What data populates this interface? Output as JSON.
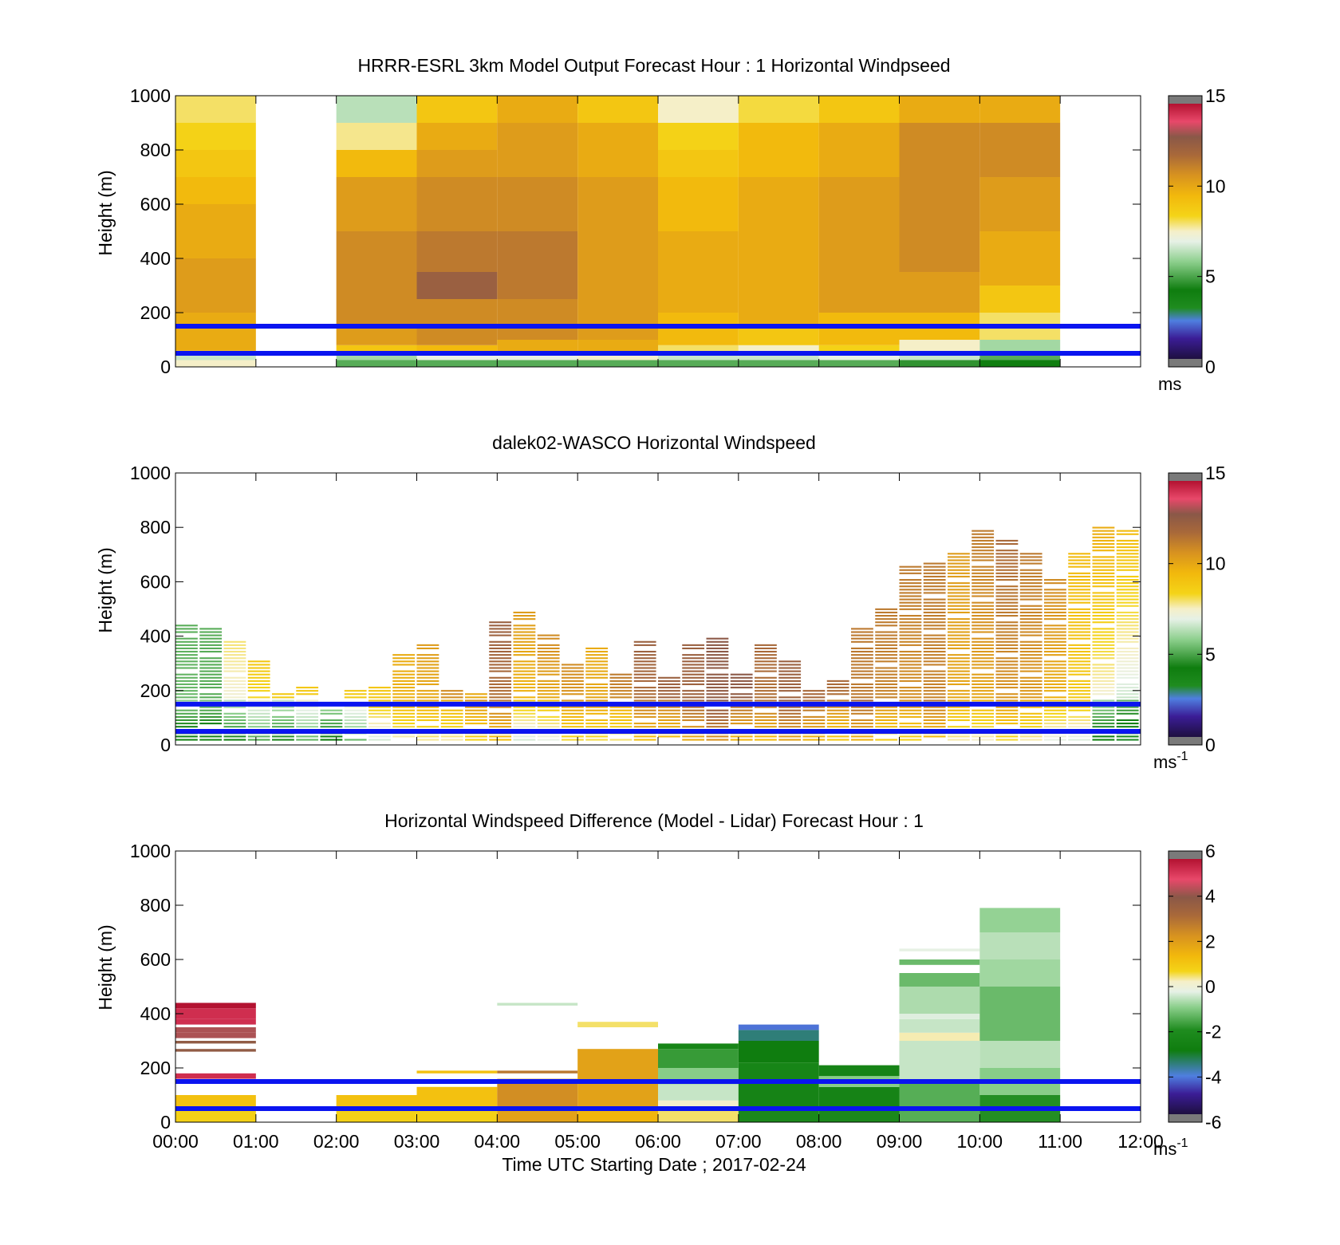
{
  "figure": {
    "xlabel": "Time UTC  Starting Date ; 2017-02-24",
    "xticks": [
      "00:00",
      "01:00",
      "02:00",
      "03:00",
      "04:00",
      "05:00",
      "06:00",
      "07:00",
      "08:00",
      "09:00",
      "10:00",
      "11:00",
      "12:00"
    ]
  },
  "chart_data": [
    {
      "id": "model",
      "type": "heatmap",
      "title": "HRRR-ESRL 3km Model Output   Forecast Hour : 1 Horizontal Windpseed",
      "ylabel": "Height (m)",
      "yticks": [
        "0",
        "200",
        "400",
        "600",
        "800",
        "1000"
      ],
      "ylim": [
        0,
        1000
      ],
      "xlim": [
        0,
        12
      ],
      "colorbar": {
        "min": 0,
        "max": 15,
        "ticks": [
          "0",
          "5",
          "10",
          "15"
        ],
        "unit": "ms"
      },
      "reference_lines_m": [
        50,
        150
      ],
      "columns": [
        {
          "t0": 0,
          "t1": 1,
          "cells": [
            [
              0,
              25,
              7.5
            ],
            [
              25,
              50,
              6.5
            ],
            [
              50,
              60,
              9
            ],
            [
              60,
              200,
              10
            ],
            [
              200,
              400,
              10.5
            ],
            [
              400,
              600,
              10
            ],
            [
              600,
              700,
              9.5
            ],
            [
              700,
              800,
              9
            ],
            [
              800,
              900,
              8.5
            ],
            [
              900,
              1000,
              8
            ]
          ]
        },
        {
          "t0": 2,
          "t1": 3,
          "cells": [
            [
              0,
              25,
              5
            ],
            [
              25,
              50,
              6
            ],
            [
              50,
              80,
              9
            ],
            [
              80,
              150,
              10.5
            ],
            [
              150,
              500,
              11
            ],
            [
              500,
              700,
              10.5
            ],
            [
              700,
              800,
              9.5
            ],
            [
              800,
              900,
              7.8
            ],
            [
              900,
              1000,
              6.3
            ]
          ]
        },
        {
          "t0": 3,
          "t1": 4,
          "cells": [
            [
              0,
              25,
              5
            ],
            [
              25,
              50,
              7
            ],
            [
              50,
              80,
              9.5
            ],
            [
              80,
              250,
              11
            ],
            [
              250,
              350,
              12.5
            ],
            [
              350,
              500,
              11.5
            ],
            [
              500,
              700,
              11
            ],
            [
              700,
              800,
              10.5
            ],
            [
              800,
              900,
              10
            ],
            [
              900,
              1000,
              9
            ]
          ]
        },
        {
          "t0": 4,
          "t1": 5,
          "cells": [
            [
              0,
              25,
              5
            ],
            [
              25,
              50,
              7
            ],
            [
              50,
              100,
              10
            ],
            [
              100,
              250,
              11
            ],
            [
              250,
              500,
              11.5
            ],
            [
              500,
              700,
              11
            ],
            [
              700,
              900,
              10.5
            ],
            [
              900,
              1000,
              10
            ]
          ]
        },
        {
          "t0": 5,
          "t1": 6,
          "cells": [
            [
              0,
              25,
              5
            ],
            [
              25,
              50,
              7.5
            ],
            [
              50,
              100,
              10
            ],
            [
              100,
              500,
              10.5
            ],
            [
              500,
              700,
              10.5
            ],
            [
              700,
              900,
              10
            ],
            [
              900,
              1000,
              9
            ]
          ]
        },
        {
          "t0": 6,
          "t1": 7,
          "cells": [
            [
              0,
              25,
              5
            ],
            [
              25,
              50,
              6.5
            ],
            [
              50,
              80,
              8
            ],
            [
              80,
              200,
              9.5
            ],
            [
              200,
              500,
              10
            ],
            [
              500,
              700,
              9.5
            ],
            [
              700,
              800,
              9
            ],
            [
              800,
              900,
              8.5
            ],
            [
              900,
              1000,
              7.5
            ]
          ]
        },
        {
          "t0": 7,
          "t1": 8,
          "cells": [
            [
              0,
              25,
              5
            ],
            [
              25,
              50,
              6.5
            ],
            [
              50,
              80,
              7.5
            ],
            [
              80,
              150,
              9
            ],
            [
              150,
              500,
              10
            ],
            [
              500,
              700,
              10
            ],
            [
              700,
              900,
              9.5
            ],
            [
              900,
              1000,
              8.2
            ]
          ]
        },
        {
          "t0": 8,
          "t1": 9,
          "cells": [
            [
              0,
              25,
              5
            ],
            [
              25,
              50,
              7
            ],
            [
              50,
              80,
              8.5
            ],
            [
              80,
              200,
              9.5
            ],
            [
              200,
              500,
              10.5
            ],
            [
              500,
              700,
              10.5
            ],
            [
              700,
              900,
              10
            ],
            [
              900,
              1000,
              9
            ]
          ]
        },
        {
          "t0": 9,
          "t1": 10,
          "cells": [
            [
              0,
              25,
              4.5
            ],
            [
              25,
              50,
              6.5
            ],
            [
              50,
              100,
              7.5
            ],
            [
              100,
              200,
              9.5
            ],
            [
              200,
              350,
              10.5
            ],
            [
              350,
              700,
              11
            ],
            [
              700,
              900,
              11
            ],
            [
              900,
              1000,
              10
            ]
          ]
        },
        {
          "t0": 10,
          "t1": 11,
          "cells": [
            [
              0,
              25,
              4
            ],
            [
              25,
              50,
              5
            ],
            [
              50,
              100,
              6
            ],
            [
              100,
              200,
              8
            ],
            [
              200,
              300,
              9
            ],
            [
              300,
              500,
              10
            ],
            [
              500,
              700,
              10.5
            ],
            [
              700,
              900,
              11
            ],
            [
              900,
              1000,
              10
            ]
          ]
        }
      ],
      "missing_columns": [
        [
          1,
          2
        ],
        [
          11,
          12
        ]
      ]
    },
    {
      "id": "lidar",
      "type": "heatmap",
      "title": "dalek02-WASCO  Horizontal Windspeed",
      "ylabel": "Height (m)",
      "yticks": [
        "0",
        "200",
        "400",
        "600",
        "800",
        "1000"
      ],
      "ylim": [
        0,
        1000
      ],
      "xlim": [
        0,
        12
      ],
      "colorbar": {
        "min": 0,
        "max": 15,
        "ticks": [
          "0",
          "5",
          "10",
          "15"
        ],
        "unit": "ms",
        "unit_exp": "-1"
      },
      "reference_lines_m": [
        50,
        150
      ],
      "profile_tops_m": [
        440,
        420,
        390,
        300,
        190,
        210,
        120,
        200,
        220,
        330,
        370,
        200,
        200,
        450,
        480,
        400,
        300,
        350,
        260,
        380,
        250,
        370,
        400,
        260,
        370,
        300,
        200,
        230,
        430,
        500,
        650,
        660,
        700,
        800,
        750,
        700,
        600,
        700,
        800,
        790
      ],
      "values_low_m": [
        5.5,
        5,
        6.5,
        7,
        6,
        7.5,
        6,
        7,
        9,
        9.5,
        9.5,
        10,
        10.5,
        11,
        9,
        9,
        10,
        10.5,
        10,
        11,
        11.5,
        12,
        12.5,
        12,
        11.5,
        12,
        12,
        11,
        11.5,
        11,
        10.5,
        11,
        10,
        9.5,
        10,
        10,
        9,
        8.5,
        6,
        5
      ],
      "values_high_m": [
        5,
        5,
        8,
        9,
        9,
        9,
        9,
        9,
        9,
        10,
        10.5,
        11,
        10,
        12.5,
        10.5,
        11,
        11,
        10,
        11.5,
        12.5,
        12.5,
        12.5,
        13,
        13,
        12,
        12.5,
        12,
        12,
        11.5,
        11.5,
        11.5,
        11.5,
        10.5,
        11.5,
        12,
        11.5,
        11,
        9.5,
        10,
        9.5
      ]
    },
    {
      "id": "difference",
      "type": "heatmap",
      "title": "Horizontal Windspeed Difference (Model - Lidar) Forecast Hour : 1",
      "ylabel": "Height (m)",
      "yticks": [
        "0",
        "200",
        "400",
        "600",
        "800",
        "1000"
      ],
      "ylim": [
        0,
        1000
      ],
      "xlim": [
        0,
        12
      ],
      "colorbar": {
        "min": -6,
        "max": 6,
        "ticks": [
          "-6",
          "-4",
          "-2",
          "0",
          "2",
          "4",
          "6"
        ],
        "unit": "ms",
        "unit_exp": "-1"
      },
      "reference_lines_m": [
        50,
        150
      ],
      "columns": [
        {
          "t0": 0,
          "t1": 1,
          "cells": [
            [
              0,
              50,
              0.8
            ],
            [
              50,
              100,
              1.2
            ],
            [
              160,
              180,
              5.5
            ],
            [
              260,
              270,
              4
            ],
            [
              290,
              300,
              4
            ],
            [
              310,
              330,
              4.5
            ],
            [
              330,
              350,
              4.5
            ],
            [
              360,
              380,
              5.5
            ],
            [
              380,
              420,
              5.5
            ],
            [
              420,
              440,
              6
            ]
          ]
        },
        {
          "t0": 2,
          "t1": 3,
          "cells": [
            [
              0,
              50,
              0.8
            ],
            [
              50,
              100,
              1.2
            ]
          ]
        },
        {
          "t0": 3,
          "t1": 4,
          "cells": [
            [
              0,
              50,
              0.8
            ],
            [
              50,
              130,
              1.2
            ],
            [
              180,
              190,
              1.2
            ]
          ]
        },
        {
          "t0": 4,
          "t1": 5,
          "cells": [
            [
              0,
              50,
              2
            ],
            [
              50,
              160,
              2.5
            ],
            [
              180,
              190,
              3
            ],
            [
              430,
              440,
              -0.5
            ]
          ]
        },
        {
          "t0": 5,
          "t1": 6,
          "cells": [
            [
              0,
              50,
              1.5
            ],
            [
              50,
              270,
              2
            ],
            [
              350,
              370,
              0.5
            ]
          ]
        },
        {
          "t0": 6,
          "t1": 7,
          "cells": [
            [
              0,
              50,
              0.5
            ],
            [
              50,
              80,
              0.2
            ],
            [
              80,
              140,
              -0.5
            ],
            [
              140,
              200,
              -1
            ],
            [
              200,
              270,
              -1.8
            ],
            [
              270,
              290,
              -2.5
            ]
          ]
        },
        {
          "t0": 7,
          "t1": 8,
          "cells": [
            [
              0,
              50,
              -2.3
            ],
            [
              50,
              150,
              -2.6
            ],
            [
              150,
              220,
              -2.5
            ],
            [
              220,
              300,
              -3
            ],
            [
              300,
              340,
              -3.6
            ],
            [
              340,
              360,
              -4.3
            ]
          ]
        },
        {
          "t0": 8,
          "t1": 9,
          "cells": [
            [
              0,
              50,
              -2.3
            ],
            [
              50,
              130,
              -2.6
            ],
            [
              130,
              170,
              -1
            ],
            [
              170,
              210,
              -2.6
            ]
          ]
        },
        {
          "t0": 9,
          "t1": 10,
          "cells": [
            [
              0,
              150,
              -1.5
            ],
            [
              150,
              300,
              -0.5
            ],
            [
              300,
              330,
              0.3
            ],
            [
              330,
              380,
              -0.5
            ],
            [
              380,
              400,
              -0.3
            ],
            [
              400,
              500,
              -0.7
            ],
            [
              500,
              550,
              -1.3
            ],
            [
              580,
              600,
              -1.3
            ],
            [
              630,
              640,
              -0.2
            ]
          ]
        },
        {
          "t0": 10,
          "t1": 11,
          "cells": [
            [
              0,
              100,
              -2
            ],
            [
              100,
              200,
              -1
            ],
            [
              200,
              300,
              -0.6
            ],
            [
              300,
              500,
              -1.3
            ],
            [
              500,
              600,
              -0.8
            ],
            [
              600,
              700,
              -0.6
            ],
            [
              700,
              790,
              -0.9
            ]
          ]
        }
      ]
    }
  ]
}
